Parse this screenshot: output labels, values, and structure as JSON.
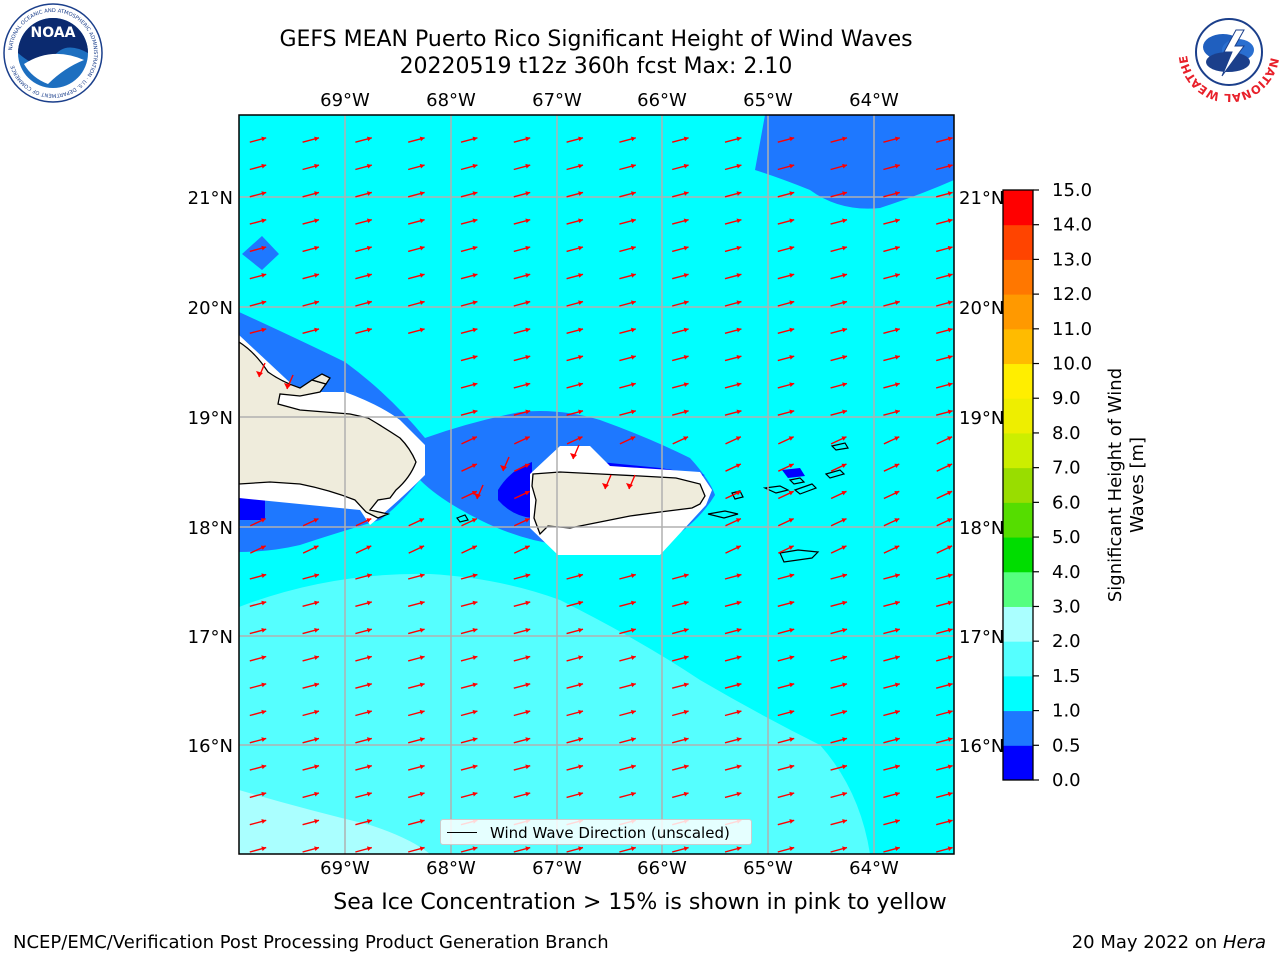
{
  "header": {
    "title_line1": "GEFS MEAN Puerto Rico Significant Height of Wind Waves",
    "title_line2": "20220519 t12z 360h fcst   Max: 2.10"
  },
  "logos": {
    "noaa_text": "NOAA",
    "noaa_ring_text": "NATIONAL OCEANIC AND ATMOSPHERIC ADMINISTRATION · U.S. DEPARTMENT OF COMMERCE",
    "nws_ring_text": "NATIONAL WEATHER SERVICE"
  },
  "map": {
    "lon_labels": [
      "69°W",
      "68°W",
      "67°W",
      "66°W",
      "65°W",
      "64°W"
    ],
    "lat_labels": [
      "21°N",
      "20°N",
      "19°N",
      "18°N",
      "17°N",
      "16°N"
    ],
    "legend_label": "Wind Wave Direction (unscaled)",
    "vector_color": "#ff0000",
    "land_color": "#efecdc",
    "gridline_color": "#b0b0b0"
  },
  "colorbar": {
    "label": "Significant Height of Wind Waves [m]",
    "levels": [
      0.0,
      0.5,
      1.0,
      1.5,
      2.0,
      3.0,
      4.0,
      5.0,
      6.0,
      7.0,
      8.0,
      9.0,
      10.0,
      11.0,
      12.0,
      13.0,
      14.0,
      15.0
    ],
    "tick_labels": [
      "0.0",
      "0.5",
      "1.0",
      "1.5",
      "2.0",
      "3.0",
      "4.0",
      "5.0",
      "6.0",
      "7.0",
      "8.0",
      "9.0",
      "10.0",
      "11.0",
      "12.0",
      "13.0",
      "14.0",
      "15.0"
    ],
    "colors": [
      "#0000ff",
      "#1e78ff",
      "#00ffff",
      "#55ffff",
      "#aaffff",
      "#55ff7f",
      "#00dd00",
      "#55dd00",
      "#99dd00",
      "#ccee00",
      "#eeee00",
      "#ffee00",
      "#ffbb00",
      "#ff9900",
      "#ff7700",
      "#ff4400",
      "#ff0000"
    ]
  },
  "notes": {
    "ice_note": "Sea Ice Concentration > 15% is shown in pink to yellow",
    "footer_left": "NCEP/EMC/Verification Post Processing Product Generation Branch",
    "footer_date": "20 May 2022 on ",
    "footer_host": "Hera"
  }
}
